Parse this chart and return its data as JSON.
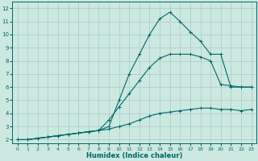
{
  "xlabel": "Humidex (Indice chaleur)",
  "background_color": "#cce8e0",
  "grid_color": "#a8ccc8",
  "line_color": "#006868",
  "xlim": [
    -0.5,
    23.5
  ],
  "ylim": [
    1.7,
    12.5
  ],
  "xtick_labels": [
    "0",
    "1",
    "2",
    "3",
    "4",
    "5",
    "6",
    "7",
    "8",
    "9",
    "10",
    "11",
    "12",
    "13",
    "14",
    "15",
    "16",
    "17",
    "18",
    "19",
    "20",
    "21",
    "22",
    "23"
  ],
  "xtick_vals": [
    0,
    1,
    2,
    3,
    4,
    5,
    6,
    7,
    8,
    9,
    10,
    11,
    12,
    13,
    14,
    15,
    16,
    17,
    18,
    19,
    20,
    21,
    22,
    23
  ],
  "ytick_vals": [
    2,
    3,
    4,
    5,
    6,
    7,
    8,
    9,
    10,
    11,
    12
  ],
  "line1_x": [
    0,
    1,
    2,
    3,
    4,
    5,
    6,
    7,
    8,
    9,
    10,
    11,
    12,
    13,
    14,
    15,
    16,
    17,
    18,
    19,
    20,
    21,
    22,
    23
  ],
  "line1_y": [
    2.0,
    2.0,
    2.1,
    2.2,
    2.3,
    2.4,
    2.5,
    2.6,
    2.7,
    3.0,
    5.0,
    7.0,
    8.5,
    10.0,
    11.2,
    11.7,
    11.0,
    10.2,
    9.5,
    8.5,
    8.5,
    6.0,
    6.0,
    6.0
  ],
  "line2_x": [
    0,
    1,
    2,
    3,
    4,
    5,
    6,
    7,
    8,
    9,
    10,
    11,
    12,
    13,
    14,
    15,
    16,
    17,
    18,
    19,
    20,
    21,
    22,
    23
  ],
  "line2_y": [
    2.0,
    2.0,
    2.1,
    2.2,
    2.3,
    2.4,
    2.5,
    2.6,
    2.7,
    3.5,
    4.5,
    5.5,
    6.5,
    7.5,
    8.2,
    8.5,
    8.5,
    8.5,
    8.3,
    8.0,
    6.2,
    6.1,
    6.0,
    6.0
  ],
  "line3_x": [
    0,
    1,
    2,
    3,
    4,
    5,
    6,
    7,
    8,
    9,
    10,
    11,
    12,
    13,
    14,
    15,
    16,
    17,
    18,
    19,
    20,
    21,
    22,
    23
  ],
  "line3_y": [
    2.0,
    2.0,
    2.1,
    2.2,
    2.3,
    2.4,
    2.5,
    2.6,
    2.7,
    2.8,
    3.0,
    3.2,
    3.5,
    3.8,
    4.0,
    4.1,
    4.2,
    4.3,
    4.4,
    4.4,
    4.3,
    4.3,
    4.2,
    4.3
  ]
}
